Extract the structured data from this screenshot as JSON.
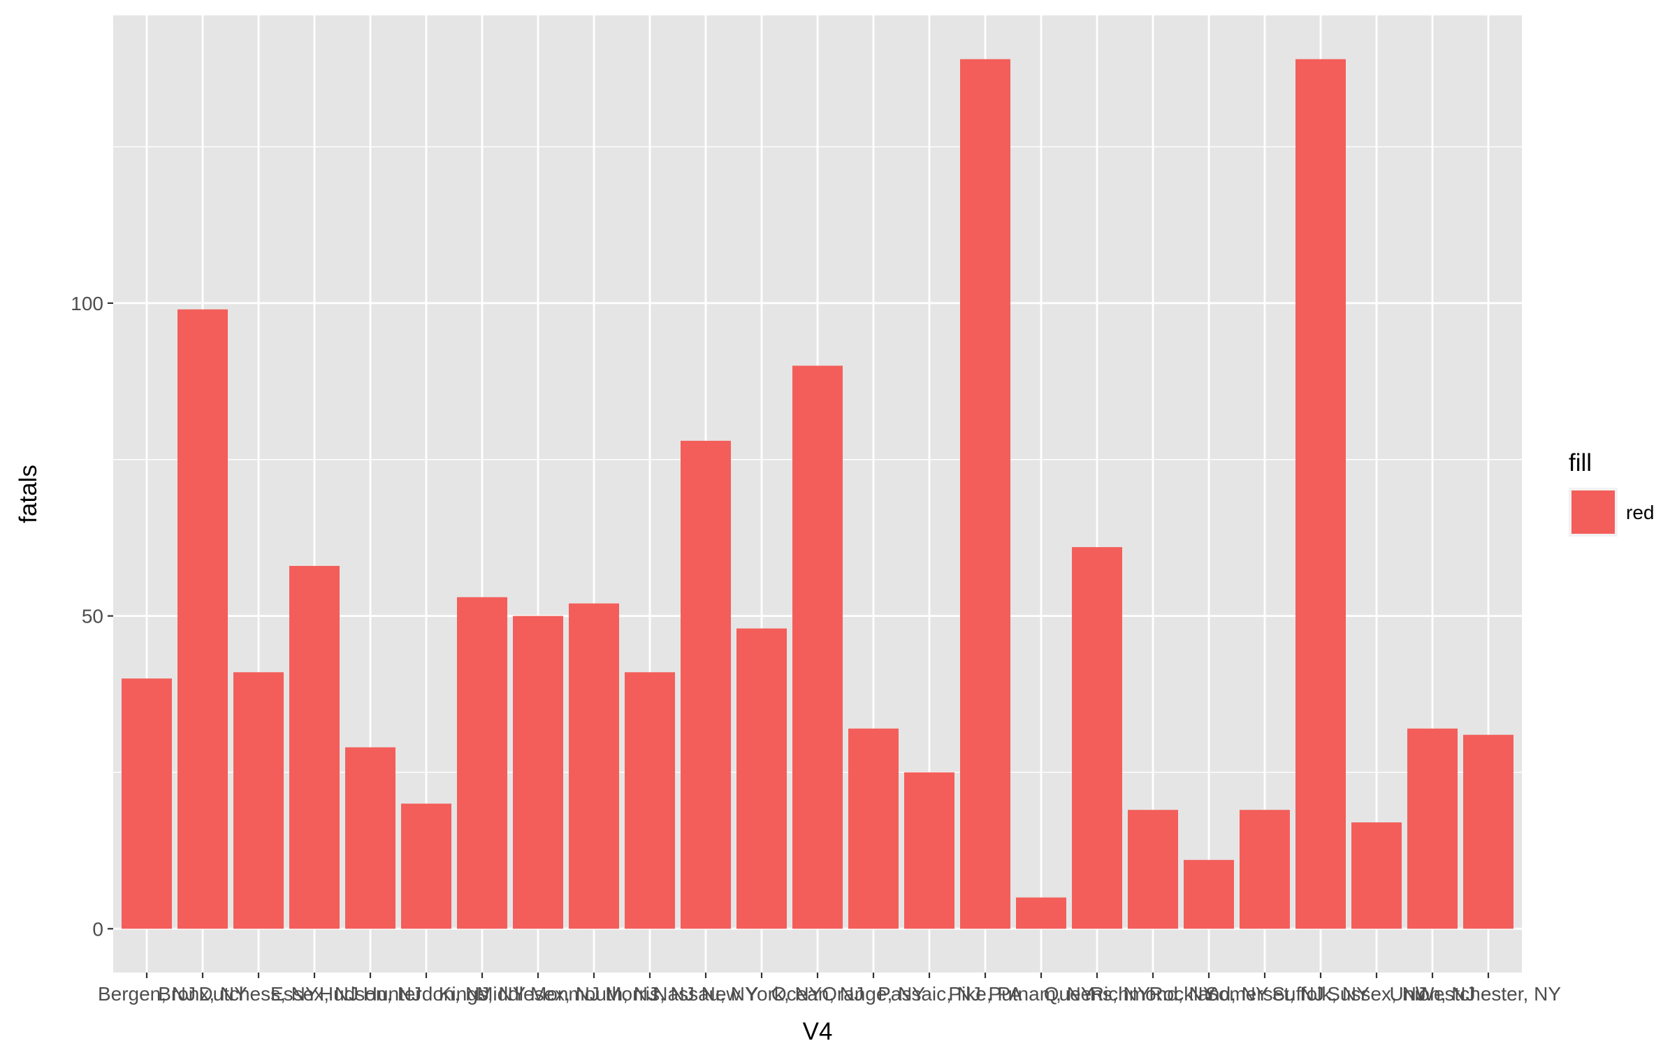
{
  "chart_data": {
    "type": "bar",
    "title": "",
    "xlabel": "V4",
    "ylabel": "fatals",
    "categories": [
      "Bergen, NJ",
      "Bronx, NY",
      "Dutchess, NY",
      "Essex, NJ",
      "Hudson, NJ",
      "Hunterdon, NJ",
      "Kings, NY",
      "Middlesex, NJ",
      "Monmouth, NJ",
      "Morris, NJ",
      "Nassau, NY",
      "New York, NY",
      "Ocean, NJ",
      "Orange, NY",
      "Passaic, NJ",
      "Pike, PA",
      "Putnam, NY",
      "Queens, NY",
      "Richmond, NY",
      "Rockland, NY",
      "Somerset, NJ",
      "Suffolk, NY",
      "Sussex, NJ",
      "Union, NJ",
      "Westchester, NY"
    ],
    "values": [
      40,
      99,
      41,
      58,
      29,
      20,
      53,
      50,
      52,
      41,
      78,
      48,
      90,
      32,
      25,
      139,
      5,
      61,
      19,
      11,
      19,
      139,
      17,
      32,
      31
    ],
    "ylim": [
      -7,
      146
    ],
    "yticks": [
      0,
      50,
      100
    ],
    "grid": true,
    "bar_color": "#F35E5A",
    "panel_color": "#E5E5E5",
    "legend": {
      "title": "fill",
      "entries": [
        {
          "label": "red",
          "color": "#F35E5A"
        }
      ],
      "position": "right"
    }
  }
}
